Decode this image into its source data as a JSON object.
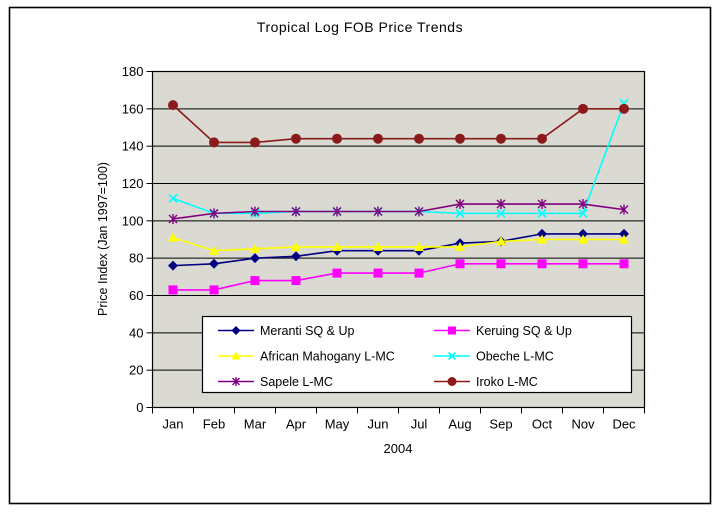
{
  "chart_data": {
    "type": "line",
    "title": "Tropical Log FOB Price Trends",
    "xlabel": "2004",
    "ylabel": "Price Index (Jan 1997=100)",
    "ylim": [
      0,
      180
    ],
    "ytick_step": 20,
    "grid": true,
    "legend_position": "bottom-center-overlay",
    "plot_bg_color": "#dadad2",
    "axis_color": "#000000",
    "categories": [
      "Jan",
      "Feb",
      "Mar",
      "Apr",
      "May",
      "Jun",
      "Jul",
      "Aug",
      "Sep",
      "Oct",
      "Nov",
      "Dec"
    ],
    "series": [
      {
        "name": "Meranti SQ & Up",
        "color": "#000080",
        "marker": "diamond",
        "values": [
          76,
          77,
          80,
          81,
          84,
          84,
          84,
          88,
          89,
          93,
          93,
          93
        ]
      },
      {
        "name": "Keruing SQ & Up",
        "color": "#ff00ff",
        "marker": "square",
        "values": [
          63,
          63,
          68,
          68,
          72,
          72,
          72,
          77,
          77,
          77,
          77,
          77
        ]
      },
      {
        "name": "African Mahogany L-MC",
        "color": "#ffff00",
        "marker": "triangle",
        "values": [
          91,
          84,
          85,
          86,
          86,
          86,
          86,
          86,
          89,
          90,
          90,
          90
        ]
      },
      {
        "name": "Obeche L-MC",
        "color": "#00ffff",
        "marker": "x",
        "values": [
          112,
          104,
          104,
          105,
          105,
          105,
          105,
          104,
          104,
          104,
          104,
          163
        ]
      },
      {
        "name": "Sapele L-MC",
        "color": "#800080",
        "marker": "asterisk",
        "values": [
          101,
          104,
          105,
          105,
          105,
          105,
          105,
          109,
          109,
          109,
          109,
          106
        ]
      },
      {
        "name": "Iroko L-MC",
        "color": "#8b1a1a",
        "marker": "circle",
        "values": [
          162,
          142,
          142,
          144,
          144,
          144,
          144,
          144,
          144,
          144,
          160,
          160
        ]
      }
    ]
  }
}
